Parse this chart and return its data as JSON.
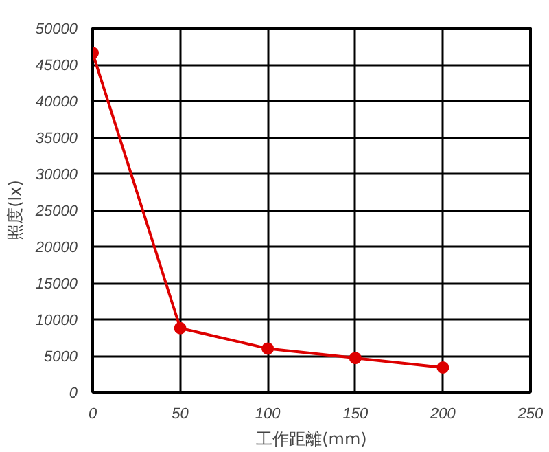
{
  "chart_data": {
    "type": "line",
    "xlabel": "工作距離(mm)",
    "ylabel": "照度(lx)",
    "x": [
      0,
      50,
      100,
      150,
      200
    ],
    "series": [
      {
        "color": "#dd0000",
        "values": [
          46600,
          8800,
          6000,
          4700,
          3400
        ]
      }
    ],
    "xlim": [
      0,
      250
    ],
    "xticks": [
      0,
      50,
      100,
      150,
      200,
      250
    ],
    "ylim": [
      0,
      50000
    ],
    "yticks": [
      0,
      5000,
      10000,
      15000,
      20000,
      25000,
      30000,
      35000,
      40000,
      45000,
      50000
    ],
    "grid": true,
    "marker": "circle",
    "line_style": "solid"
  }
}
